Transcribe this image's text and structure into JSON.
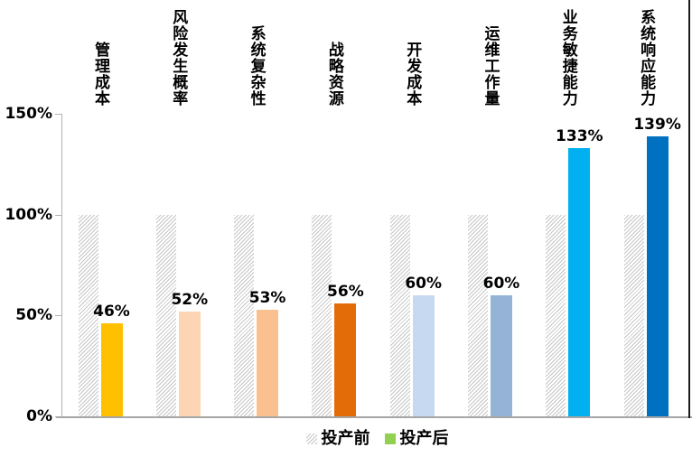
{
  "chart_data": {
    "type": "bar",
    "title": "",
    "categories": [
      "管理成本",
      "风险发生概率",
      "系统复杂性",
      "战略资源",
      "开发成本",
      "运维工作量",
      "业务敏捷能力",
      "系统响应能力"
    ],
    "series": [
      {
        "name": "投产前",
        "values": [
          100,
          100,
          100,
          100,
          100,
          100,
          100,
          100
        ],
        "style": "hatched-gray",
        "legend_swatch_color": "#c6c6c6"
      },
      {
        "name": "投产后",
        "values": [
          46,
          52,
          53,
          56,
          60,
          60,
          133,
          139
        ],
        "colors": [
          "#FFC000",
          "#FCD5B4",
          "#FAC090",
          "#E36C09",
          "#C6D9F1",
          "#95B3D7",
          "#00B0F0",
          "#0070C0"
        ],
        "legend_swatch_color": "#92D050"
      }
    ],
    "value_labels": [
      "46%",
      "52%",
      "53%",
      "56%",
      "60%",
      "60%",
      "133%",
      "139%"
    ],
    "y_axis": {
      "ticks": [
        {
          "label": "150%",
          "value": 150
        },
        {
          "label": "100%",
          "value": 100
        },
        {
          "label": "50%",
          "value": 50
        },
        {
          "label": "0%",
          "value": 0
        }
      ]
    },
    "ylim": [
      0,
      150
    ],
    "grid": false,
    "legend_position": "bottom-center"
  }
}
